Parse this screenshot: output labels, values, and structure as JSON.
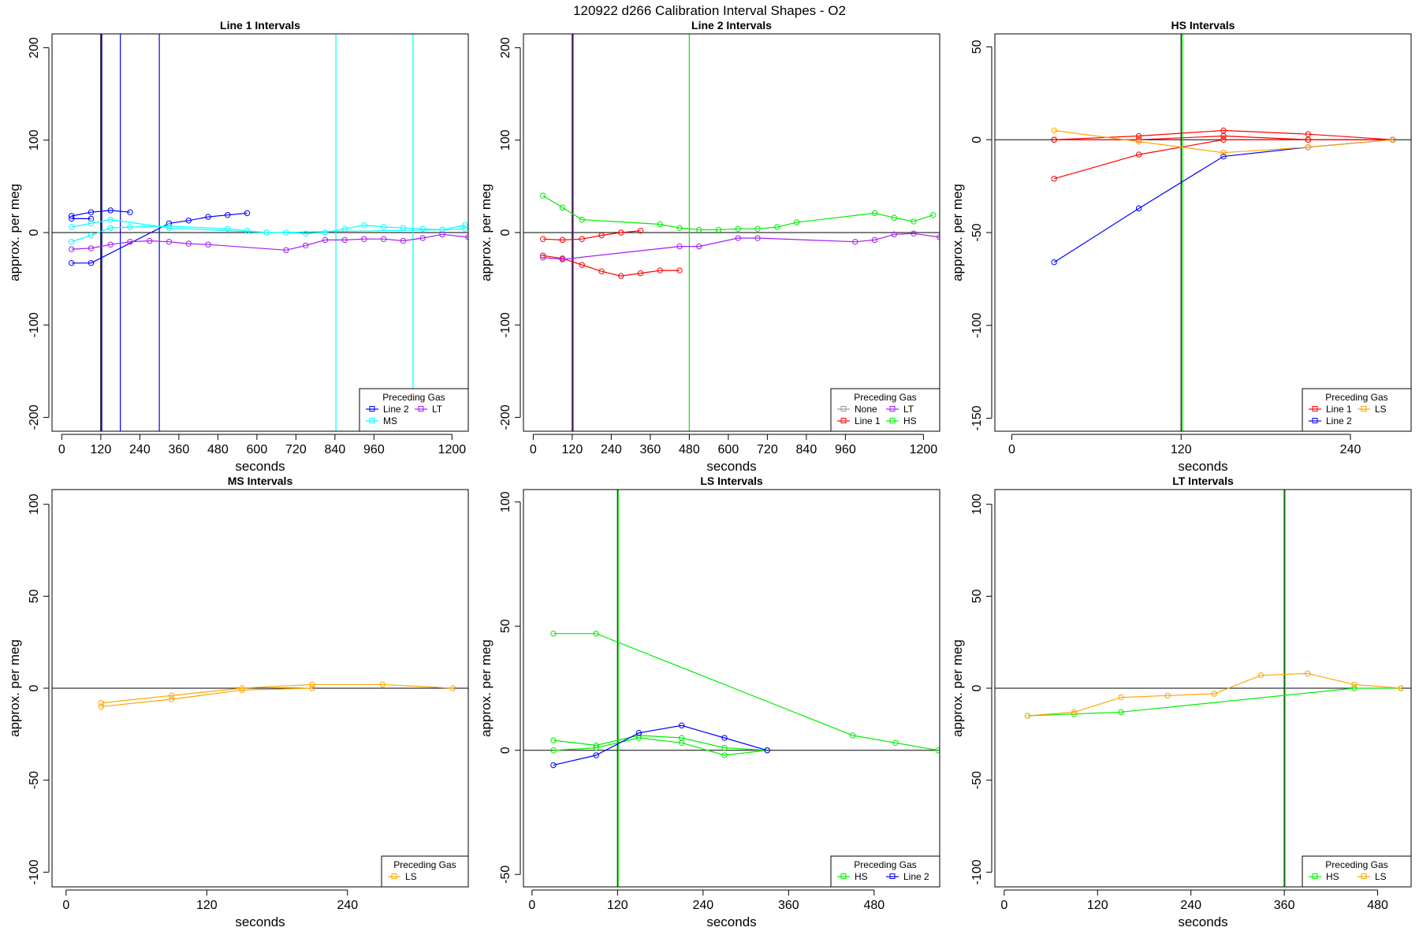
{
  "page": {
    "title": "120922   d266   Calibration Interval Shapes - O2"
  },
  "legend_title": "Preceding Gas",
  "colors": {
    "Line 1": "#ff0000",
    "Line 2": "#0000ff",
    "HS": "#00ee00",
    "MS": "#00ffff",
    "LS": "#ffa500",
    "LT": "#a020f0",
    "None": "#999999",
    "axis": "#000000"
  },
  "chart_data": [
    {
      "type": "line",
      "title": "Line 1 Intervals",
      "xlabel": "seconds",
      "ylabel": "approx. per meg",
      "xlim": [
        -30,
        1250
      ],
      "ylim": [
        -215,
        215
      ],
      "xticks": [
        0,
        120,
        240,
        360,
        480,
        600,
        720,
        840,
        960,
        1200
      ],
      "yticks": [
        -200,
        -100,
        0,
        100,
        200
      ],
      "vlines": [
        {
          "x": 120,
          "color": "#000000"
        },
        {
          "x": 123,
          "color": "#0000ff"
        },
        {
          "x": 180,
          "color": "#0000ff"
        },
        {
          "x": 300,
          "color": "#0000ff"
        },
        {
          "x": 843,
          "color": "#00ffff"
        },
        {
          "x": 1080,
          "color": "#00ffff"
        }
      ],
      "legend": {
        "position": "bottom-right",
        "columns": 2,
        "entries": [
          "Line 2",
          "LT",
          "MS"
        ]
      },
      "series": [
        {
          "name": "Line 2",
          "x": [
            30,
            90,
            150,
            210
          ],
          "y": [
            18,
            22,
            24,
            22
          ]
        },
        {
          "name": "Line 2",
          "x": [
            30,
            90
          ],
          "y": [
            15,
            15
          ]
        },
        {
          "name": "Line 2",
          "x": [
            30,
            90,
            330,
            390,
            450,
            510,
            570
          ],
          "y": [
            -33,
            -33,
            10,
            13,
            17,
            19,
            21
          ]
        },
        {
          "name": "MS",
          "x": [
            30,
            90,
            150,
            210,
            330,
            510,
            570,
            630,
            690,
            750,
            810,
            870,
            930,
            990,
            1050,
            1110,
            1170,
            1240
          ],
          "y": [
            -10,
            -3,
            5,
            6,
            7,
            4,
            2,
            0,
            0,
            -1,
            0,
            4,
            8,
            6,
            5,
            4,
            3,
            8
          ]
        },
        {
          "name": "MS",
          "x": [
            30,
            90,
            150,
            330,
            630,
            1170,
            1240
          ],
          "y": [
            6,
            10,
            14,
            5,
            0,
            3,
            4
          ]
        },
        {
          "name": "LT",
          "x": [
            30,
            90,
            150,
            210,
            270,
            330,
            390,
            450,
            690,
            750,
            810,
            870,
            930,
            990,
            1050,
            1110,
            1170,
            1250
          ],
          "y": [
            -18,
            -17,
            -13,
            -10,
            -9,
            -10,
            -12,
            -13,
            -19,
            -14,
            -8,
            -8,
            -7,
            -7,
            -9,
            -6,
            -2,
            -5
          ]
        }
      ]
    },
    {
      "type": "line",
      "title": "Line 2 Intervals",
      "xlabel": "seconds",
      "ylabel": "approx. per meg",
      "xlim": [
        -30,
        1250
      ],
      "ylim": [
        -215,
        215
      ],
      "xticks": [
        0,
        120,
        240,
        360,
        480,
        600,
        720,
        840,
        960,
        1200
      ],
      "yticks": [
        -200,
        -100,
        0,
        100,
        200
      ],
      "vlines": [
        {
          "x": 120,
          "color": "#000000"
        },
        {
          "x": 123,
          "color": "#a020f0"
        },
        {
          "x": 480,
          "color": "#00ee00"
        }
      ],
      "legend": {
        "position": "bottom-right",
        "columns": 2,
        "entries": [
          "None",
          "LT",
          "Line 1",
          "HS"
        ]
      },
      "series": [
        {
          "name": "Line 1",
          "x": [
            30,
            90,
            150,
            210,
            270,
            330
          ],
          "y": [
            -7,
            -8,
            -7,
            -3,
            0,
            2
          ]
        },
        {
          "name": "Line 1",
          "x": [
            30,
            90,
            150,
            210,
            270,
            330,
            390,
            450
          ],
          "y": [
            -25,
            -28,
            -35,
            -42,
            -47,
            -44,
            -41,
            -41
          ]
        },
        {
          "name": "LT",
          "x": [
            30,
            90,
            450,
            510,
            630,
            690,
            990,
            1050,
            1110,
            1170,
            1250
          ],
          "y": [
            -27,
            -29,
            -15,
            -15,
            -6,
            -6,
            -10,
            -8,
            -2,
            -1,
            -5
          ]
        },
        {
          "name": "HS",
          "x": [
            30,
            90,
            150,
            390,
            450,
            510,
            570,
            630,
            690,
            750,
            810,
            1050,
            1110,
            1170,
            1230
          ],
          "y": [
            40,
            27,
            14,
            9,
            5,
            3,
            3,
            4,
            4,
            6,
            11,
            21,
            16,
            12,
            19
          ]
        }
      ]
    },
    {
      "type": "line",
      "title": "HS Intervals",
      "xlabel": "seconds",
      "ylabel": "approx. per meg",
      "xlim": [
        -12,
        283
      ],
      "ylim": [
        -157,
        57
      ],
      "xticks": [
        0,
        120,
        240
      ],
      "yticks": [
        -150,
        -100,
        -50,
        0,
        50
      ],
      "vlines": [
        {
          "x": 120,
          "color": "#000000"
        },
        {
          "x": 121,
          "color": "#00ee00"
        }
      ],
      "legend": {
        "position": "bottom-right",
        "columns": 2,
        "entries": [
          "Line 1",
          "LS",
          "Line 2"
        ]
      },
      "series": [
        {
          "name": "Line 1",
          "x": [
            30,
            90,
            150,
            210,
            270
          ],
          "y": [
            0,
            2,
            5,
            3,
            0
          ]
        },
        {
          "name": "Line 1",
          "x": [
            30,
            90,
            150,
            210,
            270
          ],
          "y": [
            0,
            0,
            2,
            0,
            0
          ]
        },
        {
          "name": "Line 1",
          "x": [
            30,
            90,
            150,
            210,
            270
          ],
          "y": [
            -21,
            -8,
            0,
            0,
            0
          ]
        },
        {
          "name": "Line 2",
          "x": [
            30,
            90,
            150,
            210,
            270
          ],
          "y": [
            -66,
            -37,
            -9,
            -4,
            0
          ]
        },
        {
          "name": "LS",
          "x": [
            30,
            90,
            150,
            210,
            270
          ],
          "y": [
            5,
            -1,
            -7,
            -4,
            0
          ]
        }
      ]
    },
    {
      "type": "line",
      "title": "MS Intervals",
      "xlabel": "seconds",
      "ylabel": "approx. per meg",
      "xlim": [
        -12,
        343
      ],
      "ylim": [
        -108,
        108
      ],
      "xticks": [
        0,
        120,
        240
      ],
      "yticks": [
        -100,
        -50,
        0,
        50,
        100
      ],
      "vlines": [],
      "legend": {
        "position": "bottom-right",
        "columns": 1,
        "entries": [
          "LS"
        ]
      },
      "series": [
        {
          "name": "LS",
          "x": [
            30,
            90,
            150,
            210,
            270,
            330
          ],
          "y": [
            -8,
            -4,
            0,
            2,
            2,
            0
          ]
        },
        {
          "name": "LS",
          "x": [
            30,
            90,
            150,
            210
          ],
          "y": [
            -10,
            -6,
            -1,
            0
          ]
        }
      ]
    },
    {
      "type": "line",
      "title": "LS Intervals",
      "xlabel": "seconds",
      "ylabel": "approx. per meg",
      "xlim": [
        -12,
        572
      ],
      "ylim": [
        -55,
        105
      ],
      "xticks": [
        0,
        120,
        240,
        360,
        480
      ],
      "yticks": [
        -50,
        0,
        50,
        100
      ],
      "vlines": [
        {
          "x": 120,
          "color": "#000000"
        },
        {
          "x": 121,
          "color": "#00ee00"
        }
      ],
      "legend": {
        "position": "bottom-right",
        "columns": 2,
        "entries": [
          "HS",
          "Line 2"
        ]
      },
      "series": [
        {
          "name": "HS",
          "x": [
            30,
            90,
            450,
            510,
            570
          ],
          "y": [
            47,
            47,
            6,
            3,
            0
          ]
        },
        {
          "name": "HS",
          "x": [
            30,
            90,
            150,
            210,
            270,
            330
          ],
          "y": [
            4,
            2,
            6,
            5,
            1,
            0
          ]
        },
        {
          "name": "HS",
          "x": [
            30,
            90,
            150,
            210,
            270,
            330
          ],
          "y": [
            0,
            1,
            5,
            3,
            -2,
            0
          ]
        },
        {
          "name": "Line 2",
          "x": [
            30,
            90,
            150,
            210,
            270,
            330
          ],
          "y": [
            -6,
            -2,
            7,
            10,
            5,
            0
          ]
        }
      ]
    },
    {
      "type": "line",
      "title": "LT Intervals",
      "xlabel": "seconds",
      "ylabel": "approx. per meg",
      "xlim": [
        -12,
        523
      ],
      "ylim": [
        -108,
        108
      ],
      "xticks": [
        0,
        120,
        240,
        360,
        480
      ],
      "yticks": [
        -100,
        -50,
        0,
        50,
        100
      ],
      "vlines": [
        {
          "x": 360,
          "color": "#000000"
        },
        {
          "x": 361,
          "color": "#00ee00"
        }
      ],
      "legend": {
        "position": "bottom-right",
        "columns": 2,
        "entries": [
          "HS",
          "LS"
        ]
      },
      "series": [
        {
          "name": "HS",
          "x": [
            30,
            90,
            150,
            450,
            510
          ],
          "y": [
            -15,
            -14,
            -13,
            0,
            0
          ]
        },
        {
          "name": "LS",
          "x": [
            30,
            90,
            150,
            210,
            270,
            330,
            390,
            450,
            510
          ],
          "y": [
            -15,
            -13,
            -5,
            -4,
            -3,
            7,
            8,
            2,
            0
          ]
        }
      ]
    }
  ]
}
